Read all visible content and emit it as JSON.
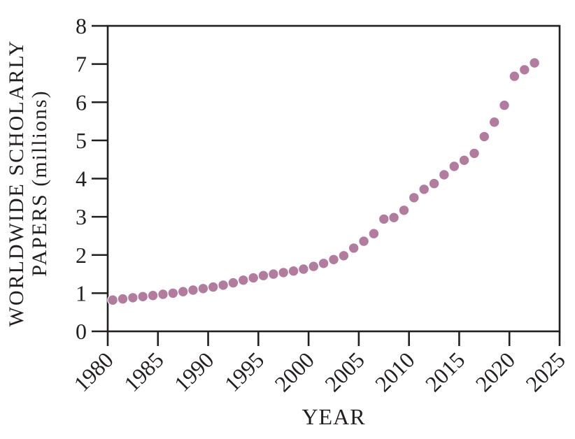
{
  "chart_data": {
    "type": "scatter",
    "title": "",
    "xlabel": "YEAR",
    "ylabel": "WORLDWIDE SCHOLARLY PAPERS (millions)",
    "ylabel_lines": [
      "WORLDWIDE SCHOLARLY",
      "PAPERS (millions)"
    ],
    "xlim": [
      1980,
      2025
    ],
    "ylim": [
      0,
      8
    ],
    "x_tick_labels": [
      "1980",
      "1985",
      "1990",
      "1995",
      "2000",
      "2005",
      "2010",
      "2015",
      "2020",
      "2025"
    ],
    "x_tick_values": [
      1980,
      1985,
      1990,
      1995,
      2000,
      2005,
      2010,
      2015,
      2020,
      2025
    ],
    "y_tick_labels": [
      "0",
      "1",
      "2",
      "3",
      "4",
      "5",
      "6",
      "7",
      "8"
    ],
    "y_tick_values": [
      0,
      1,
      2,
      3,
      4,
      5,
      6,
      7,
      8
    ],
    "grid": false,
    "legend_position": "none",
    "x_tick_rotation_deg": 45,
    "point_plot_offset_years": 0.5,
    "colors": {
      "point": "#b27c9e",
      "axis": "#231f20",
      "background": "#ffffff"
    },
    "series": [
      {
        "name": "worldwide-scholarly-papers-millions",
        "x": [
          1980,
          1981,
          1982,
          1983,
          1984,
          1985,
          1986,
          1987,
          1988,
          1989,
          1990,
          1991,
          1992,
          1993,
          1994,
          1995,
          1996,
          1997,
          1998,
          1999,
          2000,
          2001,
          2002,
          2003,
          2004,
          2005,
          2006,
          2007,
          2008,
          2009,
          2010,
          2011,
          2012,
          2013,
          2014,
          2015,
          2016,
          2017,
          2018,
          2019,
          2020,
          2021,
          2022
        ],
        "y": [
          0.82,
          0.85,
          0.88,
          0.91,
          0.94,
          0.97,
          1.0,
          1.04,
          1.08,
          1.12,
          1.16,
          1.21,
          1.27,
          1.34,
          1.4,
          1.46,
          1.5,
          1.54,
          1.58,
          1.63,
          1.7,
          1.78,
          1.88,
          1.98,
          2.18,
          2.36,
          2.56,
          2.94,
          2.98,
          3.17,
          3.5,
          3.72,
          3.87,
          4.1,
          4.32,
          4.48,
          4.66,
          5.1,
          5.48,
          5.92,
          6.68,
          6.85,
          7.03
        ]
      }
    ]
  }
}
